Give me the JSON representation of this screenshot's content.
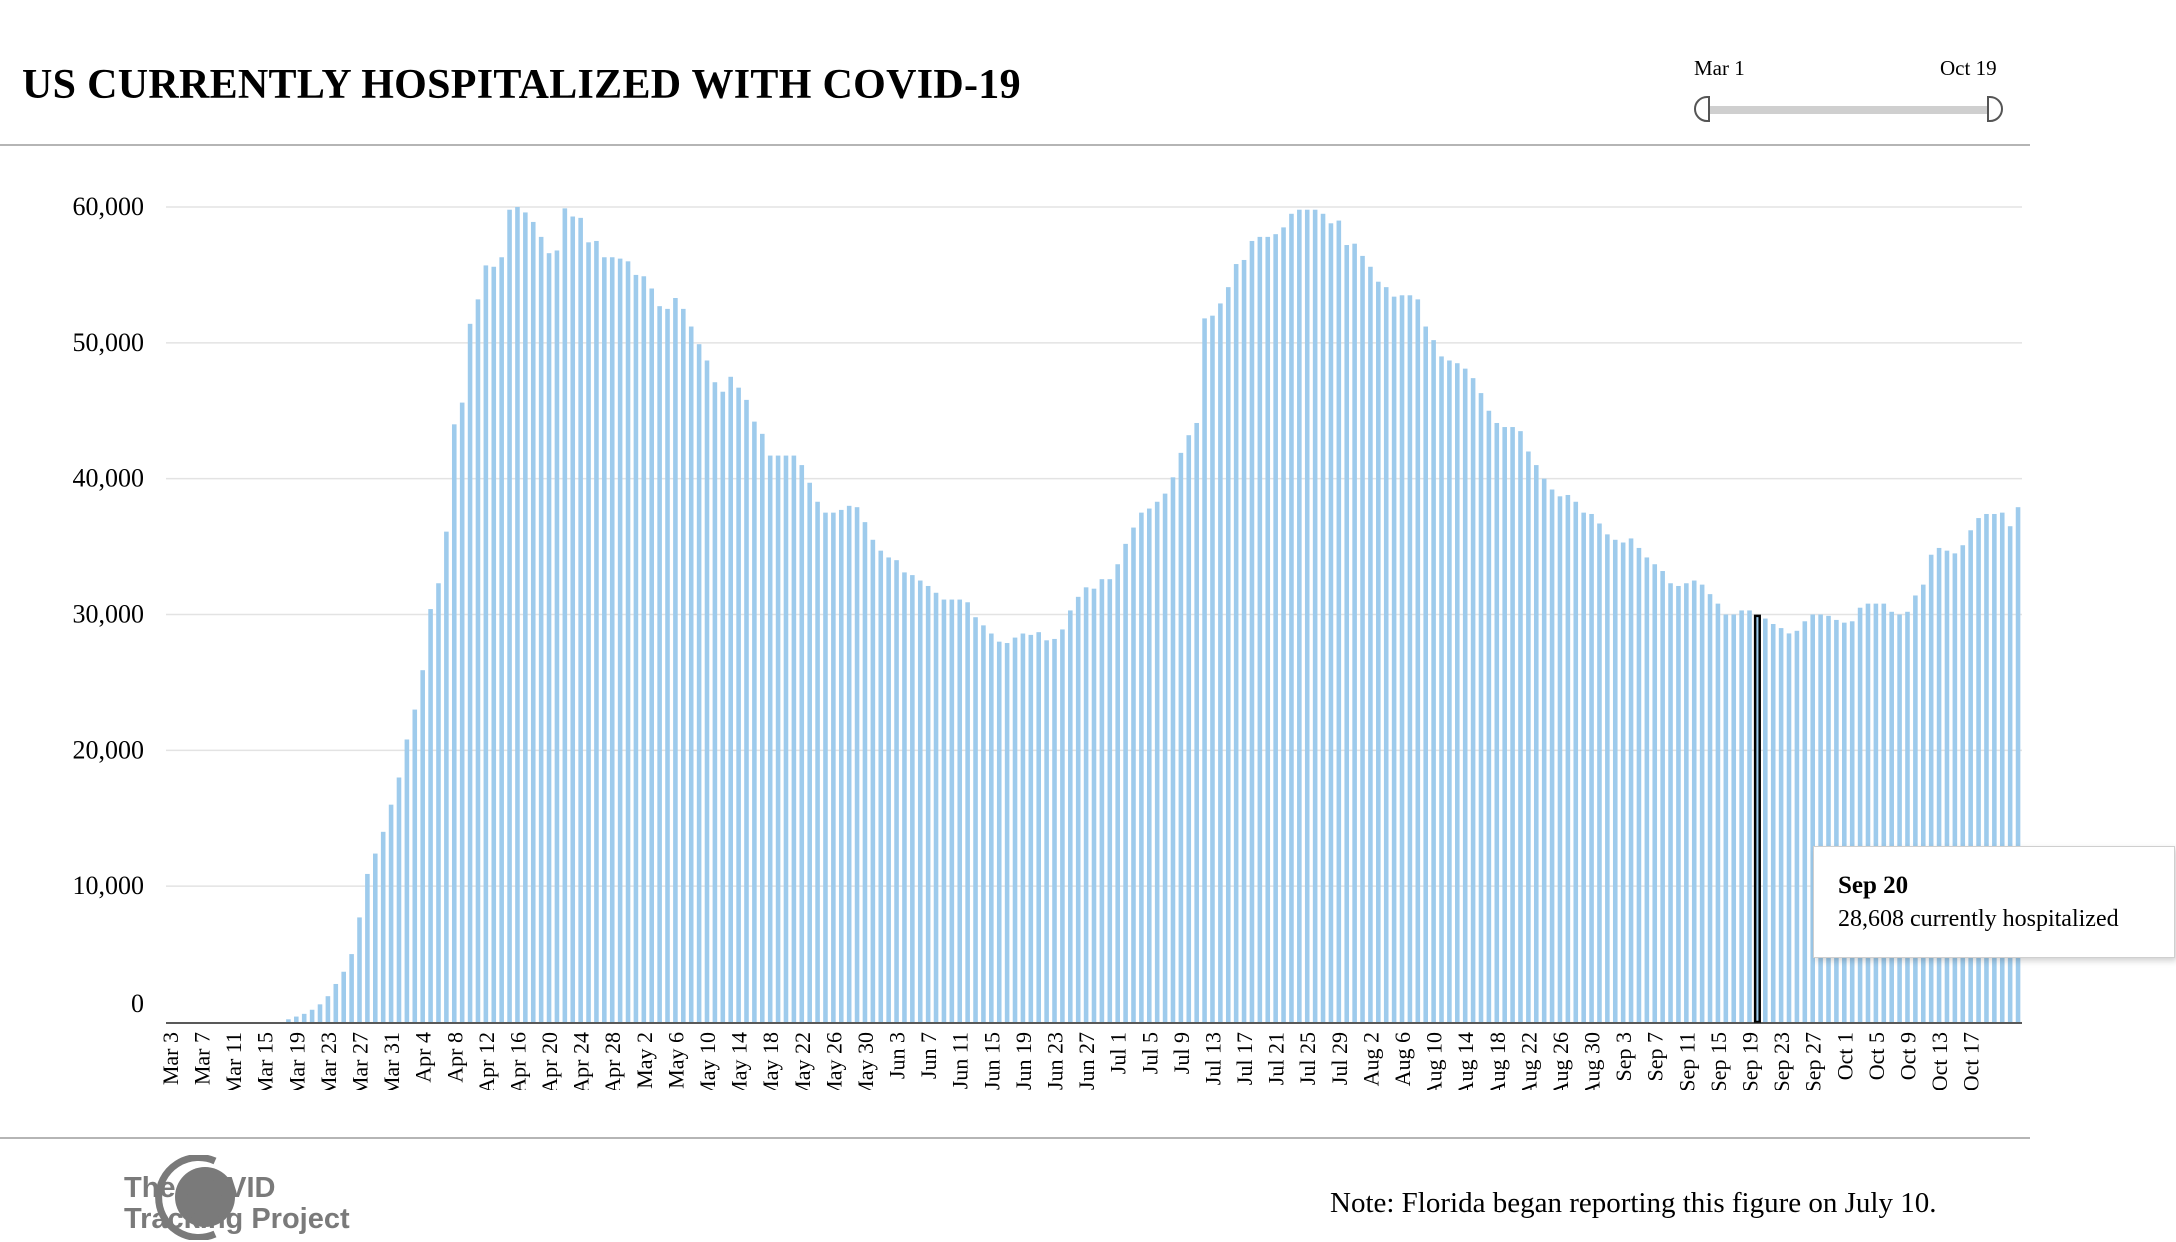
{
  "header": {
    "title": "US CURRENTLY HOSPITALIZED WITH COVID-19"
  },
  "range": {
    "start_label": "Mar 1",
    "end_label": "Oct 19"
  },
  "tooltip": {
    "date": "Sep 20",
    "value_text": "28,608 currently hospitalized"
  },
  "footer": {
    "logo_line1": "The COVID",
    "logo_line2": "Tracking Project",
    "note": "Note: Florida began reporting this figure on July 10."
  },
  "colors": {
    "bar": "#9ecbec",
    "highlight_fill": "#9ecbec",
    "highlight_stroke": "#000000",
    "grid": "#e3e3e3",
    "logo": "#7a7a7a"
  },
  "chart_data": {
    "type": "bar",
    "title": "US CURRENTLY HOSPITALIZED WITH COVID-19",
    "xlabel": "",
    "ylabel": "",
    "ylim": [
      0,
      60000
    ],
    "grid": true,
    "yticks": [
      0,
      10000,
      20000,
      30000,
      40000,
      50000,
      60000
    ],
    "ytick_labels": [
      "0",
      "10,000",
      "20,000",
      "30,000",
      "40,000",
      "50,000",
      "60,000"
    ],
    "xtick_labels": [
      "Mar 3",
      "Mar 7",
      "Mar 11",
      "Mar 15",
      "Mar 19",
      "Mar 23",
      "Mar 27",
      "Mar 31",
      "Apr 4",
      "Apr 8",
      "Apr 12",
      "Apr 16",
      "Apr 20",
      "Apr 24",
      "Apr 28",
      "May 2",
      "May 6",
      "May 10",
      "May 14",
      "May 18",
      "May 22",
      "May 26",
      "May 30",
      "Jun 3",
      "Jun 7",
      "Jun 11",
      "Jun 15",
      "Jun 19",
      "Jun 23",
      "Jun 27",
      "Jul 1",
      "Jul 5",
      "Jul 9",
      "Jul 13",
      "Jul 17",
      "Jul 21",
      "Jul 25",
      "Jul 29",
      "Aug 2",
      "Aug 6",
      "Aug 10",
      "Aug 14",
      "Aug 18",
      "Aug 22",
      "Aug 26",
      "Aug 30",
      "Sep 3",
      "Sep 7",
      "Sep 11",
      "Sep 15",
      "Sep 19",
      "Sep 23",
      "Sep 27",
      "Oct 1",
      "Oct 5",
      "Oct 9",
      "Oct 13",
      "Oct 17"
    ],
    "start_date": "2020-03-03",
    "highlight": {
      "date": "Sep 20",
      "value": 28608
    },
    "values": [
      0,
      0,
      0,
      0,
      0,
      0,
      0,
      0,
      0,
      0,
      0,
      0,
      0,
      0,
      0,
      200,
      400,
      600,
      900,
      1300,
      1900,
      2800,
      3700,
      5000,
      7700,
      10900,
      12400,
      14000,
      16000,
      18000,
      20800,
      23000,
      25900,
      30400,
      32300,
      36100,
      44000,
      45600,
      51400,
      53200,
      55700,
      55600,
      56300,
      59800,
      60000,
      59600,
      58900,
      57800,
      56600,
      56800,
      59900,
      59300,
      59200,
      57400,
      57500,
      56300,
      56300,
      56200,
      56000,
      55000,
      54900,
      54000,
      52700,
      52500,
      53300,
      52500,
      51200,
      49900,
      48700,
      47100,
      46400,
      47500,
      46700,
      45800,
      44200,
      43300,
      41700,
      41700,
      41700,
      41700,
      41000,
      39700,
      38300,
      37500,
      37500,
      37700,
      38000,
      37900,
      36800,
      35500,
      34700,
      34200,
      34000,
      33100,
      32900,
      32500,
      32100,
      31600,
      31100,
      31100,
      31100,
      30900,
      29800,
      29200,
      28600,
      28000,
      27900,
      28300,
      28600,
      28500,
      28700,
      28100,
      28200,
      28900,
      30300,
      31300,
      32000,
      31900,
      32600,
      32600,
      33700,
      35200,
      36400,
      37500,
      37800,
      38300,
      38900,
      40100,
      41900,
      43200,
      44100,
      51800,
      52000,
      52900,
      54100,
      55800,
      56100,
      57500,
      57800,
      57800,
      58000,
      58500,
      59500,
      59800,
      59800,
      59800,
      59500,
      58800,
      59000,
      57200,
      57300,
      56400,
      55600,
      54500,
      54100,
      53400,
      53500,
      53500,
      53200,
      51200,
      50200,
      49000,
      48700,
      48500,
      48100,
      47400,
      46300,
      45000,
      44100,
      43800,
      43800,
      43500,
      42000,
      41000,
      40000,
      39200,
      38700,
      38800,
      38300,
      37500,
      37400,
      36700,
      35900,
      35500,
      35300,
      35600,
      34900,
      34200,
      33700,
      33200,
      32300,
      32100,
      32300,
      32500,
      32200,
      31500,
      30800,
      30000,
      30000,
      30300,
      30300,
      29900,
      29700,
      29300,
      29000,
      28608,
      28800,
      29500,
      30000,
      30000,
      29900,
      29600,
      29400,
      29500,
      30500,
      30800,
      30800,
      30800,
      30200,
      30000,
      30200,
      31400,
      32200,
      34400,
      34900,
      34700,
      34500,
      35100,
      36200,
      37100,
      37400,
      37400,
      37500,
      36500,
      37900
    ]
  }
}
